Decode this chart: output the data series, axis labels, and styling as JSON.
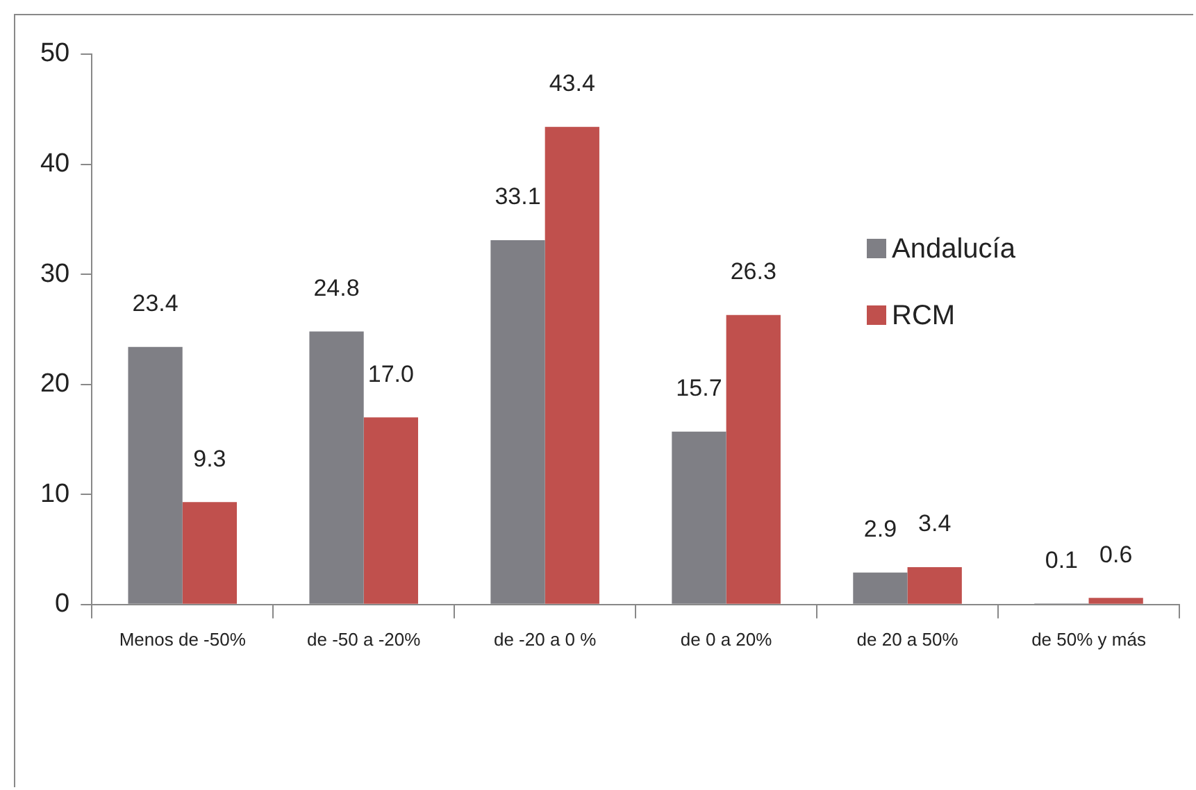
{
  "chart_data": {
    "type": "bar",
    "categories": [
      "Menos de -50%",
      "de -50 a -20%",
      "de -20 a 0 %",
      "de 0 a 20%",
      "de 20 a 50%",
      "de 50% y más"
    ],
    "series": [
      {
        "name": "Andalucía",
        "color": "#7f7f85",
        "values": [
          23.4,
          24.8,
          33.1,
          15.7,
          2.9,
          0.1
        ],
        "value_labels": [
          "23.4",
          "24.8",
          "33.1",
          "15.7",
          "2.9",
          "0.1"
        ]
      },
      {
        "name": "RCM",
        "color": "#c0504d",
        "values": [
          9.3,
          17.0,
          43.4,
          26.3,
          3.4,
          0.6
        ],
        "value_labels": [
          "9.3",
          "17.0",
          "43.4",
          "26.3",
          "3.4",
          "0.6"
        ]
      }
    ],
    "ylim": [
      0,
      50
    ],
    "yticks": [
      0,
      10,
      20,
      30,
      40,
      50
    ],
    "grid": false,
    "legend": "right"
  }
}
